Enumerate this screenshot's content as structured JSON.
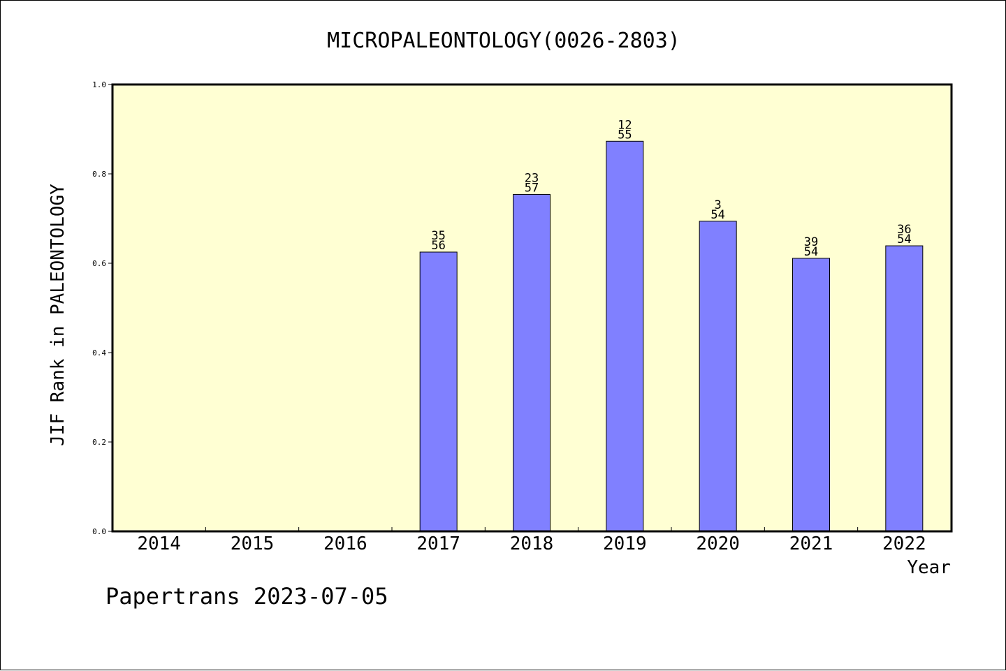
{
  "chart_data": {
    "type": "bar",
    "title": "MICROPALEONTOLOGY(0026-2803)",
    "xlabel": "Year",
    "ylabel": "JIF Rank in PALEONTOLOGY",
    "categories": [
      "2014",
      "2015",
      "2016",
      "2017",
      "2018",
      "2019",
      "2020",
      "2021",
      "2022"
    ],
    "values": [
      null,
      null,
      null,
      0.625,
      0.754,
      0.873,
      0.694,
      0.611,
      0.639
    ],
    "rank_labels": [
      null,
      null,
      null,
      {
        "rank": "35",
        "total": "56"
      },
      {
        "rank": "23",
        "total": "57"
      },
      {
        "rank": "12",
        "total": "55"
      },
      {
        "rank": "3",
        "total": "54"
      },
      {
        "rank": "39",
        "total": "54"
      },
      {
        "rank": "36",
        "total": "54"
      }
    ],
    "ylim": [
      0,
      1
    ],
    "yticks": [
      "0.0",
      "0.2",
      "0.4",
      "0.6",
      "0.8",
      "1.0"
    ],
    "grid": false,
    "colors": {
      "plot_background": "#ffffd3",
      "bar_fill": "#8080ff",
      "bar_stroke": "#000000"
    }
  },
  "footer": "Papertrans 2023-07-05"
}
